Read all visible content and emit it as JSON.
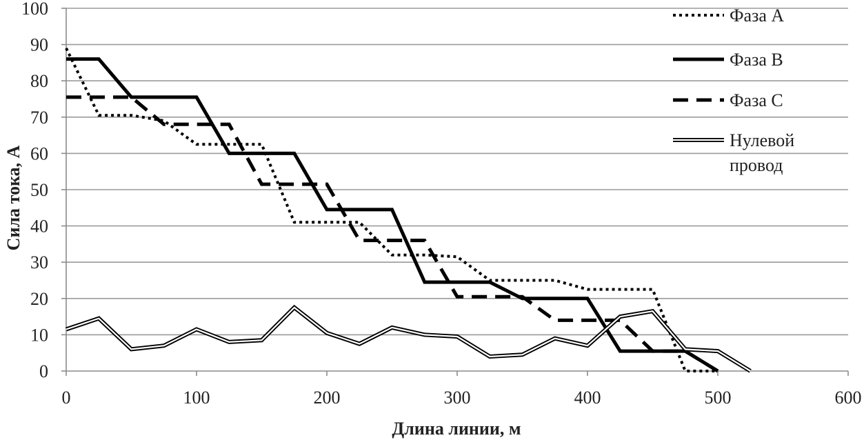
{
  "chart_data": {
    "type": "line",
    "xlabel": "Длина линии, м",
    "ylabel": "Сила тока, А",
    "xlim": [
      0,
      600
    ],
    "ylim": [
      0,
      100
    ],
    "xticks": [
      0,
      100,
      200,
      300,
      400,
      500,
      600
    ],
    "yticks": [
      0,
      10,
      20,
      30,
      40,
      50,
      60,
      70,
      80,
      90,
      100
    ],
    "grid": "horizontal",
    "legend_position": "top-right",
    "series": [
      {
        "name": "Фаза А",
        "style": "dotted",
        "color": "#000000",
        "points": [
          [
            0,
            89
          ],
          [
            25,
            70.5
          ],
          [
            50,
            70.5
          ],
          [
            75,
            69
          ],
          [
            100,
            62.5
          ],
          [
            125,
            62.5
          ],
          [
            150,
            62.5
          ],
          [
            175,
            41
          ],
          [
            200,
            41
          ],
          [
            225,
            41
          ],
          [
            250,
            32
          ],
          [
            275,
            32
          ],
          [
            300,
            31.5
          ],
          [
            325,
            25
          ],
          [
            350,
            25
          ],
          [
            375,
            25
          ],
          [
            400,
            22.5
          ],
          [
            425,
            22.5
          ],
          [
            450,
            22.5
          ],
          [
            475,
            0
          ],
          [
            500,
            0
          ]
        ]
      },
      {
        "name": "Фаза В",
        "style": "solid",
        "color": "#000000",
        "points": [
          [
            0,
            86
          ],
          [
            25,
            86
          ],
          [
            50,
            75.5
          ],
          [
            75,
            75.5
          ],
          [
            100,
            75.5
          ],
          [
            125,
            60
          ],
          [
            150,
            60
          ],
          [
            175,
            60
          ],
          [
            200,
            44.5
          ],
          [
            225,
            44.5
          ],
          [
            250,
            44.5
          ],
          [
            275,
            24.5
          ],
          [
            300,
            24.5
          ],
          [
            325,
            24.5
          ],
          [
            350,
            20
          ],
          [
            375,
            20
          ],
          [
            400,
            20
          ],
          [
            425,
            5.5
          ],
          [
            450,
            5.5
          ],
          [
            475,
            5.5
          ],
          [
            500,
            0
          ]
        ]
      },
      {
        "name": "Фаза С",
        "style": "dashed",
        "color": "#000000",
        "points": [
          [
            0,
            75.5
          ],
          [
            25,
            75.5
          ],
          [
            50,
            75.5
          ],
          [
            75,
            68
          ],
          [
            100,
            68
          ],
          [
            125,
            68
          ],
          [
            150,
            51.5
          ],
          [
            175,
            51.5
          ],
          [
            200,
            51.5
          ],
          [
            225,
            36
          ],
          [
            250,
            36
          ],
          [
            275,
            36
          ],
          [
            300,
            20.5
          ],
          [
            325,
            20.5
          ],
          [
            350,
            20.5
          ],
          [
            375,
            14
          ],
          [
            400,
            14
          ],
          [
            425,
            14
          ],
          [
            450,
            5.5
          ],
          [
            475,
            5.5
          ],
          [
            500,
            0
          ]
        ]
      },
      {
        "name": "Нулевой провод",
        "style": "double",
        "color": "#000000",
        "points": [
          [
            0,
            11.5
          ],
          [
            25,
            14.5
          ],
          [
            50,
            6
          ],
          [
            75,
            7
          ],
          [
            100,
            11.5
          ],
          [
            125,
            8
          ],
          [
            150,
            8.5
          ],
          [
            175,
            17.5
          ],
          [
            200,
            10.5
          ],
          [
            225,
            7.5
          ],
          [
            250,
            12
          ],
          [
            275,
            10
          ],
          [
            300,
            9.5
          ],
          [
            325,
            4
          ],
          [
            350,
            4.5
          ],
          [
            375,
            9
          ],
          [
            400,
            7
          ],
          [
            425,
            15
          ],
          [
            450,
            16.5
          ],
          [
            475,
            6
          ],
          [
            500,
            5.5
          ],
          [
            525,
            0
          ]
        ]
      }
    ]
  }
}
